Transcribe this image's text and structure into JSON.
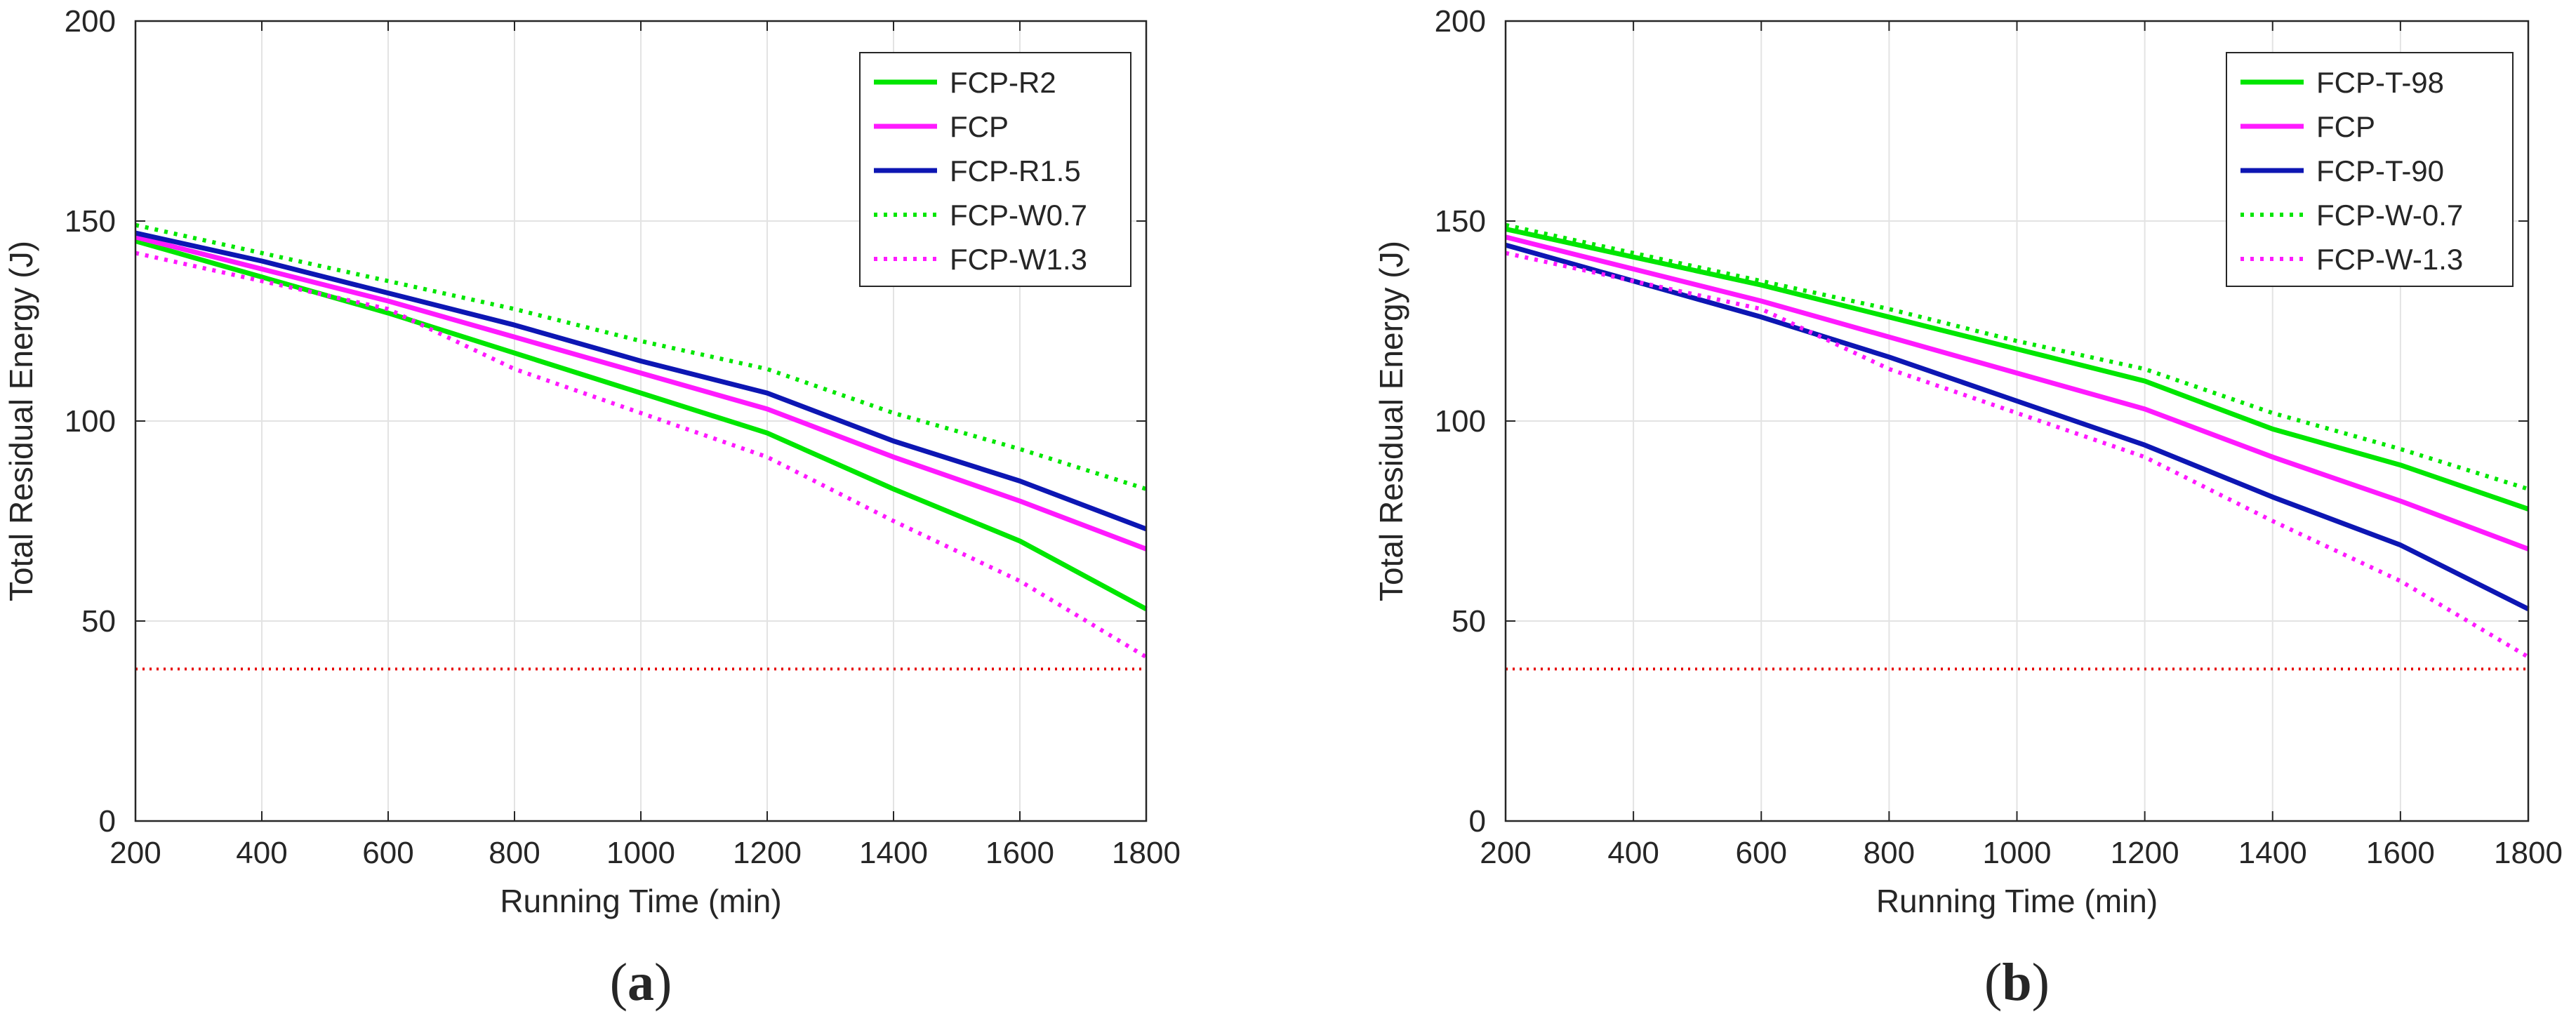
{
  "chart_data": [
    {
      "type": "line",
      "caption_open": "(",
      "caption_letter": "a",
      "caption_close": ")",
      "title": "",
      "xlabel": "Running Time (min)",
      "ylabel": "Total Residual Energy (J)",
      "xlim": [
        200,
        1800
      ],
      "ylim": [
        0,
        200
      ],
      "xticks": [
        200,
        400,
        600,
        800,
        1000,
        1200,
        1400,
        1600,
        1800
      ],
      "yticks": [
        0,
        50,
        100,
        150,
        200
      ],
      "x": [
        200,
        400,
        600,
        800,
        1000,
        1200,
        1400,
        1600,
        1800
      ],
      "grid": true,
      "legend_position": "top-right",
      "series": [
        {
          "name": "FCP-R2",
          "color": "#00e600",
          "style": "solid",
          "values": [
            145,
            136,
            127,
            117,
            107,
            97,
            83,
            70,
            53
          ]
        },
        {
          "name": "FCP",
          "color": "#ff1aff",
          "style": "solid",
          "values": [
            146,
            138,
            130,
            121,
            112,
            103,
            91,
            80,
            68
          ]
        },
        {
          "name": "FCP-R1.5",
          "color": "#0d16b3",
          "style": "solid",
          "values": [
            147,
            140,
            132,
            124,
            115,
            107,
            95,
            85,
            73
          ]
        },
        {
          "name": "FCP-W0.7",
          "color": "#00e600",
          "style": "dotted",
          "values": [
            149,
            142,
            135,
            128,
            120,
            113,
            102,
            93,
            83
          ]
        },
        {
          "name": "FCP-W1.3",
          "color": "#ff1aff",
          "style": "dotted",
          "values": [
            142,
            135,
            128,
            113,
            102,
            91,
            75,
            60,
            41
          ]
        }
      ],
      "reference_line": {
        "y": 38,
        "color": "#e60000",
        "style": "dotted"
      }
    },
    {
      "type": "line",
      "caption_open": "(",
      "caption_letter": "b",
      "caption_close": ")",
      "title": "",
      "xlabel": "Running Time (min)",
      "ylabel": "Total Residual Energy (J)",
      "xlim": [
        200,
        1800
      ],
      "ylim": [
        0,
        200
      ],
      "xticks": [
        200,
        400,
        600,
        800,
        1000,
        1200,
        1400,
        1600,
        1800
      ],
      "yticks": [
        0,
        50,
        100,
        150,
        200
      ],
      "x": [
        200,
        400,
        600,
        800,
        1000,
        1200,
        1400,
        1600,
        1800
      ],
      "grid": true,
      "legend_position": "top-right",
      "series": [
        {
          "name": "FCP-T-98",
          "color": "#00e600",
          "style": "solid",
          "values": [
            148,
            141,
            134,
            126,
            118,
            110,
            98,
            89,
            78
          ]
        },
        {
          "name": "FCP",
          "color": "#ff1aff",
          "style": "solid",
          "values": [
            146,
            138,
            130,
            121,
            112,
            103,
            91,
            80,
            68
          ]
        },
        {
          "name": "FCP-T-90",
          "color": "#0d16b3",
          "style": "solid",
          "values": [
            144,
            135,
            126,
            116,
            105,
            94,
            81,
            69,
            53
          ]
        },
        {
          "name": "FCP-W-0.7",
          "color": "#00e600",
          "style": "dotted",
          "values": [
            149,
            142,
            135,
            128,
            120,
            113,
            102,
            93,
            83
          ]
        },
        {
          "name": "FCP-W-1.3",
          "color": "#ff1aff",
          "style": "dotted",
          "values": [
            142,
            135,
            128,
            113,
            102,
            91,
            75,
            60,
            41
          ]
        }
      ],
      "reference_line": {
        "y": 38,
        "color": "#e60000",
        "style": "dotted"
      }
    }
  ]
}
